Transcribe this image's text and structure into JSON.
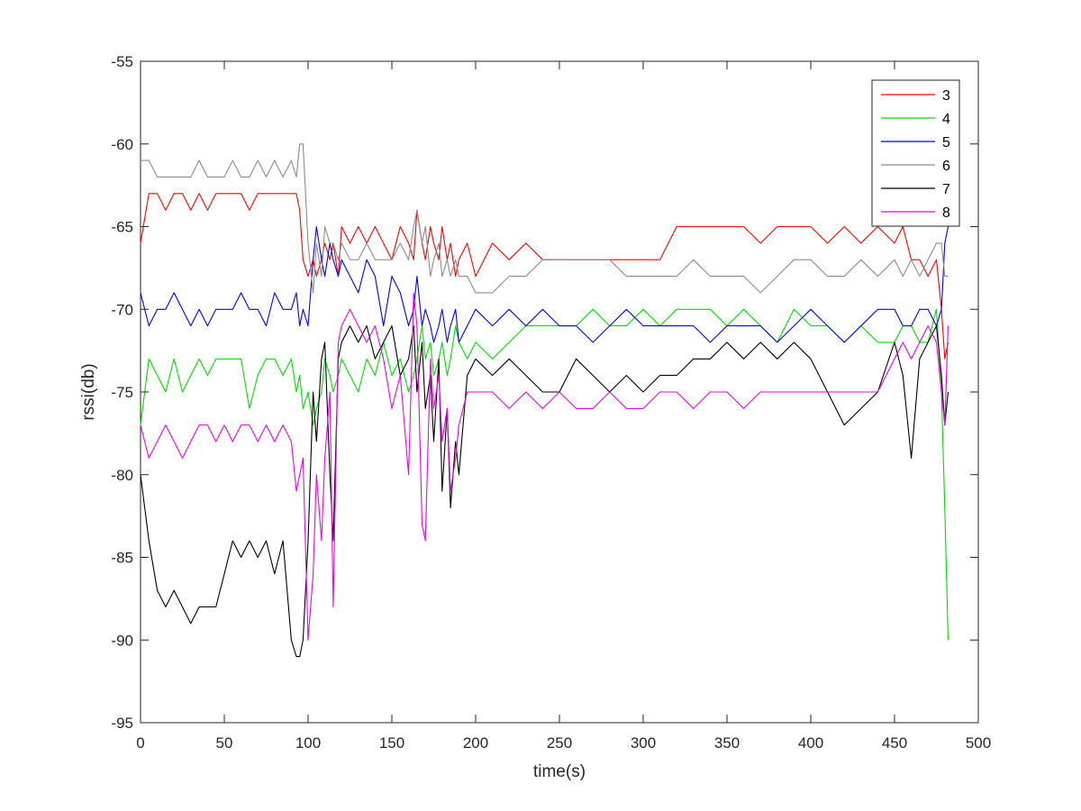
{
  "chart_data": {
    "type": "line",
    "title": "",
    "xlabel": "time(s)",
    "ylabel": "rssi(db)",
    "xlim": [
      0,
      500
    ],
    "ylim": [
      -95,
      -55
    ],
    "xticks": [
      0,
      50,
      100,
      150,
      200,
      250,
      300,
      350,
      400,
      450,
      500
    ],
    "yticks": [
      -95,
      -90,
      -85,
      -80,
      -75,
      -70,
      -65,
      -60,
      -55
    ],
    "grid": false,
    "legend_position": "top-right",
    "x": [
      0,
      5,
      10,
      15,
      20,
      25,
      30,
      35,
      40,
      45,
      50,
      55,
      60,
      65,
      70,
      75,
      80,
      85,
      90,
      93,
      95,
      97,
      100,
      103,
      105,
      108,
      110,
      113,
      115,
      118,
      120,
      125,
      130,
      135,
      140,
      145,
      150,
      155,
      160,
      163,
      165,
      168,
      170,
      173,
      175,
      178,
      180,
      183,
      185,
      188,
      190,
      195,
      200,
      210,
      220,
      230,
      240,
      250,
      260,
      270,
      280,
      290,
      300,
      310,
      320,
      330,
      340,
      350,
      360,
      370,
      380,
      390,
      400,
      410,
      420,
      430,
      440,
      450,
      455,
      460,
      465,
      470,
      475,
      478,
      480,
      482
    ],
    "series": [
      {
        "name": "3",
        "color": "#ff0000",
        "values": [
          -66,
          -63,
          -63,
          -64,
          -63,
          -63,
          -64,
          -63,
          -64,
          -63,
          -63,
          -63,
          -63,
          -64,
          -63,
          -63,
          -63,
          -63,
          -63,
          -63,
          -64,
          -67,
          -68,
          -67,
          -68,
          -67,
          -66,
          -67,
          -66,
          -68,
          -65,
          -66,
          -65,
          -66,
          -65,
          -66,
          -67,
          -65,
          -66,
          -67,
          -64,
          -66,
          -67,
          -65,
          -66,
          -67,
          -65,
          -67,
          -66,
          -68,
          -67,
          -66,
          -68,
          -66,
          -67,
          -66,
          -67,
          -67,
          -67,
          -67,
          -67,
          -67,
          -67,
          -67,
          -65,
          -65,
          -65,
          -65,
          -65,
          -66,
          -65,
          -65,
          -65,
          -66,
          -65,
          -66,
          -65,
          -66,
          -65,
          -67,
          -67,
          -68,
          -67,
          -70,
          -73,
          -72
        ]
      },
      {
        "name": "4",
        "color": "#00dd00",
        "values": [
          -77,
          -73,
          -74,
          -75,
          -73,
          -75,
          -74,
          -73,
          -74,
          -73,
          -73,
          -73,
          -73,
          -76,
          -74,
          -73,
          -73,
          -74,
          -73,
          -75,
          -74,
          -76,
          -75,
          -77,
          -76,
          -75,
          -73,
          -74,
          -75,
          -74,
          -73,
          -74,
          -75,
          -73,
          -74,
          -72,
          -74,
          -73,
          -75,
          -74,
          -73,
          -71,
          -73,
          -72,
          -74,
          -73,
          -72,
          -74,
          -73,
          -71,
          -72,
          -73,
          -72,
          -73,
          -72,
          -71,
          -71,
          -71,
          -71,
          -70,
          -71,
          -71,
          -70,
          -71,
          -70,
          -70,
          -70,
          -71,
          -70,
          -71,
          -72,
          -70,
          -71,
          -71,
          -72,
          -71,
          -72,
          -72,
          -71,
          -71,
          -72,
          -72,
          -70,
          -75,
          -82,
          -90
        ]
      },
      {
        "name": "5",
        "color": "#0000ff",
        "values": [
          -69,
          -71,
          -70,
          -70,
          -69,
          -70,
          -71,
          -70,
          -71,
          -70,
          -70,
          -70,
          -69,
          -70,
          -70,
          -71,
          -69,
          -70,
          -70,
          -69,
          -71,
          -70,
          -71,
          -67,
          -65,
          -67,
          -68,
          -66,
          -67,
          -68,
          -67,
          -68,
          -69,
          -67,
          -68,
          -71,
          -68,
          -69,
          -71,
          -70,
          -68,
          -71,
          -70,
          -71,
          -72,
          -71,
          -70,
          -72,
          -71,
          -70,
          -72,
          -71,
          -70,
          -71,
          -70,
          -71,
          -70,
          -71,
          -71,
          -72,
          -71,
          -70,
          -71,
          -71,
          -71,
          -71,
          -72,
          -71,
          -71,
          -71,
          -72,
          -71,
          -70,
          -71,
          -72,
          -71,
          -70,
          -70,
          -71,
          -71,
          -70,
          -70,
          -71,
          -70,
          -66,
          -65
        ]
      },
      {
        "name": "6",
        "color": "#8c8c8c",
        "values": [
          -61,
          -61,
          -62,
          -62,
          -62,
          -62,
          -62,
          -61,
          -62,
          -62,
          -62,
          -61,
          -62,
          -62,
          -61,
          -62,
          -61,
          -62,
          -61,
          -62,
          -60,
          -60,
          -66,
          -69,
          -66,
          -68,
          -65,
          -66,
          -66,
          -67,
          -66,
          -67,
          -67,
          -66,
          -67,
          -67,
          -67,
          -66,
          -67,
          -65,
          -64,
          -66,
          -65,
          -68,
          -67,
          -66,
          -68,
          -67,
          -68,
          -67,
          -68,
          -68,
          -69,
          -69,
          -68,
          -68,
          -67,
          -67,
          -67,
          -67,
          -67,
          -68,
          -68,
          -68,
          -68,
          -67,
          -68,
          -68,
          -68,
          -69,
          -68,
          -67,
          -67,
          -68,
          -68,
          -67,
          -68,
          -67,
          -68,
          -67,
          -68,
          -67,
          -66,
          -66,
          -68,
          -68
        ]
      },
      {
        "name": "7",
        "color": "#000000",
        "values": [
          -80,
          -84,
          -87,
          -88,
          -87,
          -88,
          -89,
          -88,
          -88,
          -88,
          -86,
          -84,
          -85,
          -84,
          -85,
          -84,
          -86,
          -84,
          -90,
          -91,
          -91,
          -90,
          -84,
          -75,
          -78,
          -73,
          -72,
          -80,
          -84,
          -73,
          -72,
          -71,
          -72,
          -71,
          -73,
          -72,
          -71,
          -74,
          -73,
          -71,
          -75,
          -72,
          -76,
          -74,
          -78,
          -73,
          -81,
          -76,
          -82,
          -78,
          -80,
          -74,
          -73,
          -74,
          -73,
          -74,
          -75,
          -75,
          -73,
          -74,
          -75,
          -74,
          -75,
          -74,
          -74,
          -73,
          -73,
          -72,
          -73,
          -72,
          -73,
          -72,
          -73,
          -75,
          -77,
          -76,
          -75,
          -72,
          -74,
          -79,
          -73,
          -72,
          -71,
          -74,
          -77,
          -75
        ]
      },
      {
        "name": "8",
        "color": "#ee00ee",
        "values": [
          -77,
          -79,
          -78,
          -77,
          -78,
          -79,
          -78,
          -77,
          -77,
          -78,
          -77,
          -78,
          -77,
          -77,
          -78,
          -77,
          -78,
          -77,
          -78,
          -81,
          -80,
          -79,
          -90,
          -86,
          -80,
          -84,
          -79,
          -75,
          -88,
          -72,
          -71,
          -70,
          -71,
          -72,
          -71,
          -73,
          -76,
          -74,
          -80,
          -69,
          -71,
          -83,
          -84,
          -73,
          -76,
          -74,
          -78,
          -76,
          -81,
          -79,
          -77,
          -75,
          -75,
          -75,
          -76,
          -75,
          -76,
          -75,
          -76,
          -76,
          -75,
          -76,
          -76,
          -75,
          -75,
          -76,
          -75,
          -75,
          -76,
          -75,
          -75,
          -75,
          -75,
          -75,
          -75,
          -75,
          -75,
          -73,
          -72,
          -73,
          -72,
          -71,
          -72,
          -75,
          -77,
          -71
        ]
      }
    ]
  }
}
